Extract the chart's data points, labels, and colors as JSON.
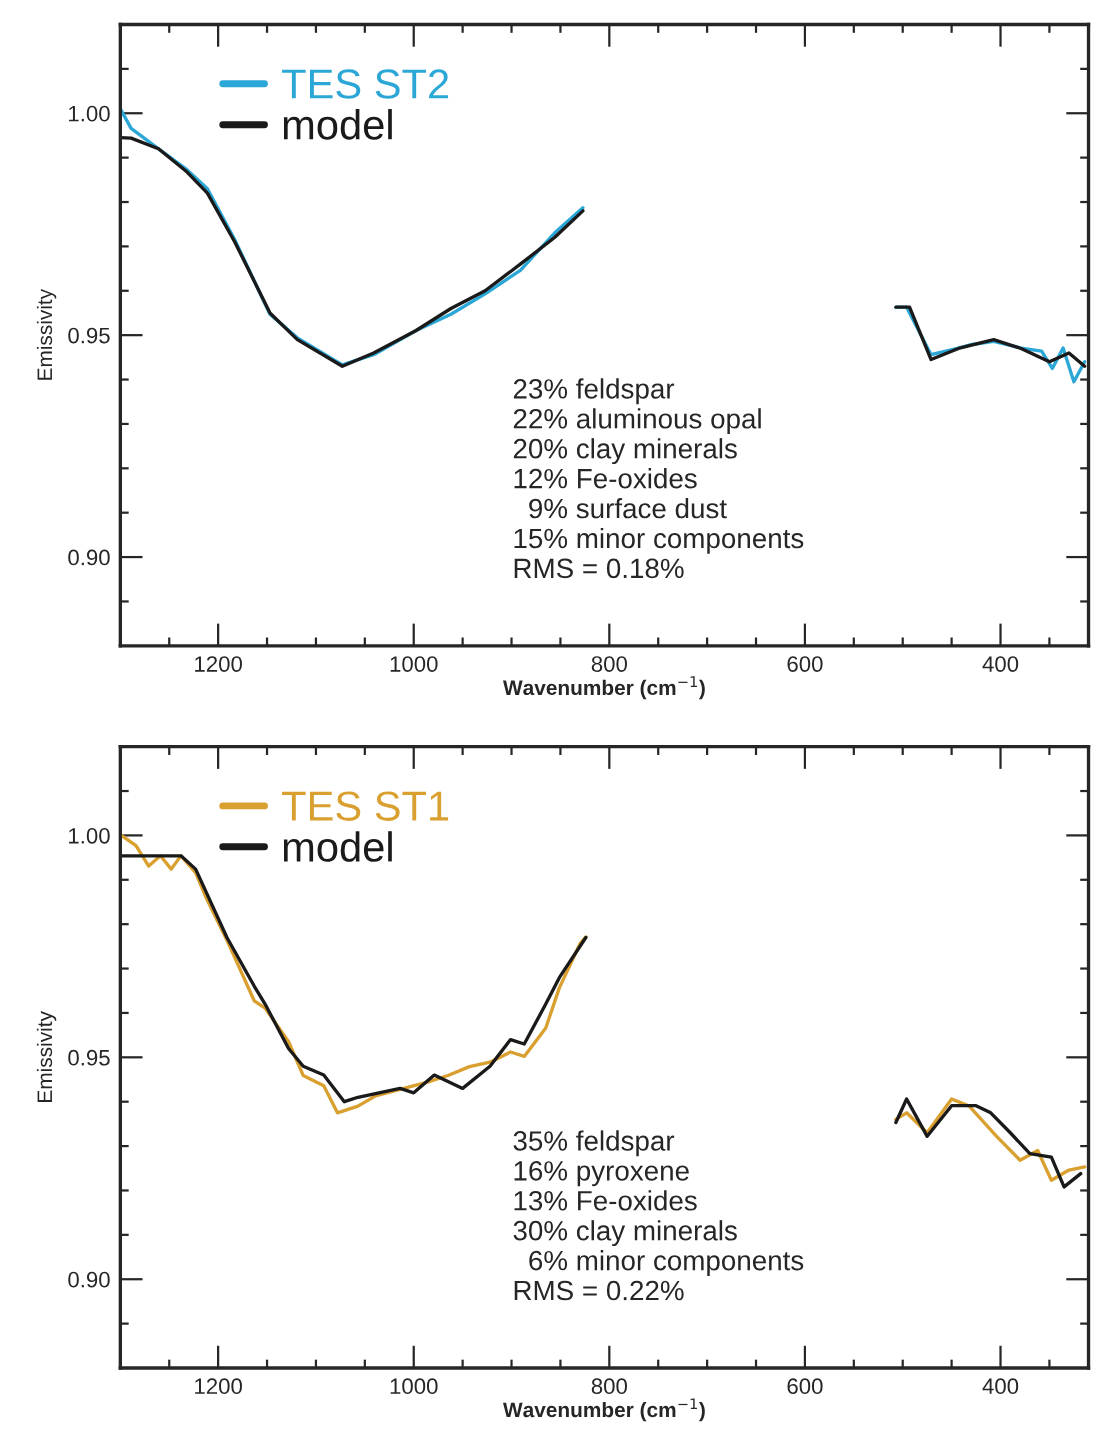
{
  "chart_data": [
    {
      "type": "line",
      "xlabel": "Wavenumber (cm$^{−1}$)",
      "ylabel": "Emissivity",
      "xlim": [
        1300,
        310
      ],
      "ylim": [
        0.88,
        1.02
      ],
      "xticks": [
        1200,
        1000,
        800,
        600,
        400,
        {
          "value": 1250,
          "label": null
        },
        {
          "value": 1150,
          "label": null
        },
        {
          "value": 1100,
          "label": null
        },
        {
          "value": 1050,
          "label": null
        },
        {
          "value": 950,
          "label": null
        },
        {
          "value": 900,
          "label": null
        },
        {
          "value": 850,
          "label": null
        },
        {
          "value": 750,
          "label": null
        },
        {
          "value": 700,
          "label": null
        },
        {
          "value": 650,
          "label": null
        },
        {
          "value": 550,
          "label": null
        },
        {
          "value": 500,
          "label": null
        },
        {
          "value": 450,
          "label": null
        },
        {
          "value": 350,
          "label": null
        }
      ],
      "yticks": [
        {
          "value": 1.0,
          "label": "1.00"
        },
        {
          "value": 0.95,
          "label": "0.95"
        },
        {
          "value": 0.9,
          "label": "0.90"
        },
        {
          "value": 1.01,
          "label": null
        },
        {
          "value": 0.99,
          "label": null
        },
        {
          "value": 0.98,
          "label": null
        },
        {
          "value": 0.97,
          "label": null
        },
        {
          "value": 0.96,
          "label": null
        },
        {
          "value": 0.94,
          "label": null
        },
        {
          "value": 0.93,
          "label": null
        },
        {
          "value": 0.92,
          "label": null
        },
        {
          "value": 0.91,
          "label": null
        },
        {
          "value": 0.89,
          "label": null
        }
      ],
      "legend": "top left",
      "grid": false,
      "marker": "none",
      "line_style": "solid",
      "series": [
        {
          "name": "TES ST2",
          "color": "#2aa7d6",
          "x": [
            1300,
            1289,
            1261,
            1233,
            1211,
            1183,
            1147,
            1119,
            1073,
            1041,
            998,
            962,
            927,
            891,
            856,
            827,
            670,
            507,
            496,
            471,
            443,
            429,
            407,
            379,
            358,
            347,
            336,
            325,
            314
          ],
          "values": [
            1.001,
            0.9966,
            0.992,
            0.9875,
            0.983,
            0.9715,
            0.9547,
            0.9494,
            0.9433,
            0.9456,
            0.951,
            0.9547,
            0.9593,
            0.9646,
            0.973,
            0.9787,
            null,
            0.9563,
            0.9563,
            0.9456,
            0.9471,
            0.9479,
            0.9486,
            0.9471,
            0.9464,
            0.9425,
            0.9471,
            0.9395,
            0.944
          ]
        },
        {
          "name": "model",
          "color": "#1a1a1a",
          "x": [
            1300,
            1289,
            1261,
            1233,
            1211,
            1183,
            1147,
            1119,
            1073,
            1041,
            998,
            962,
            927,
            891,
            856,
            827,
            670,
            507,
            493,
            471,
            443,
            407,
            379,
            350,
            330,
            314
          ],
          "values": [
            0.9945,
            0.9944,
            0.992,
            0.987,
            0.982,
            0.971,
            0.955,
            0.949,
            0.943,
            0.946,
            0.951,
            0.956,
            0.96,
            0.966,
            0.972,
            0.978,
            null,
            0.9563,
            0.9563,
            0.9445,
            0.947,
            0.949,
            0.947,
            0.944,
            0.946,
            0.943
          ]
        }
      ],
      "annotations": [
        "23% feldspar",
        "22% aluminous opal",
        "20% clay minerals",
        "12% Fe-oxides",
        "  9% surface dust",
        "15% minor components",
        "RMS = 0.18%"
      ]
    },
    {
      "type": "line",
      "xlabel": "Wavenumber (cm$^{−1}$)",
      "ylabel": "Emissivity",
      "xlim": [
        1300,
        310
      ],
      "ylim": [
        0.88,
        1.02
      ],
      "xticks": [
        1200,
        1000,
        800,
        600,
        400,
        {
          "value": 1250,
          "label": null
        },
        {
          "value": 1150,
          "label": null
        },
        {
          "value": 1100,
          "label": null
        },
        {
          "value": 1050,
          "label": null
        },
        {
          "value": 950,
          "label": null
        },
        {
          "value": 900,
          "label": null
        },
        {
          "value": 850,
          "label": null
        },
        {
          "value": 750,
          "label": null
        },
        {
          "value": 700,
          "label": null
        },
        {
          "value": 650,
          "label": null
        },
        {
          "value": 550,
          "label": null
        },
        {
          "value": 500,
          "label": null
        },
        {
          "value": 450,
          "label": null
        },
        {
          "value": 350,
          "label": null
        }
      ],
      "yticks": [
        {
          "value": 1.0,
          "label": "1.00"
        },
        {
          "value": 0.95,
          "label": "0.95"
        },
        {
          "value": 0.9,
          "label": "0.90"
        },
        {
          "value": 1.01,
          "label": null
        },
        {
          "value": 0.99,
          "label": null
        },
        {
          "value": 0.98,
          "label": null
        },
        {
          "value": 0.97,
          "label": null
        },
        {
          "value": 0.96,
          "label": null
        },
        {
          "value": 0.94,
          "label": null
        },
        {
          "value": 0.93,
          "label": null
        },
        {
          "value": 0.92,
          "label": null
        },
        {
          "value": 0.91,
          "label": null
        },
        {
          "value": 0.89,
          "label": null
        }
      ],
      "legend": "top left",
      "grid": false,
      "marker": "none",
      "line_style": "solid",
      "series": [
        {
          "name": "TES ST1",
          "color": "#d9a030",
          "x": [
            1299,
            1284,
            1271,
            1259,
            1248,
            1238,
            1223,
            1213,
            1191,
            1163,
            1152,
            1128,
            1113,
            1092,
            1078,
            1057,
            1039,
            1014,
            986,
            965,
            943,
            922,
            901,
            887,
            865,
            851,
            830,
            824,
            670,
            507,
            496,
            475,
            450,
            432,
            404,
            380,
            362,
            348,
            330,
            314
          ],
          "values": [
            1.0,
            0.9977,
            0.9931,
            0.9954,
            0.9924,
            0.9954,
            0.9916,
            0.9863,
            0.9764,
            0.9627,
            0.9611,
            0.9535,
            0.9459,
            0.9436,
            0.9375,
            0.939,
            0.9413,
            0.9428,
            0.9444,
            0.9459,
            0.9479,
            0.9489,
            0.9512,
            0.9502,
            0.9566,
            0.9657,
            0.9756,
            0.9771,
            null,
            0.936,
            0.9375,
            0.933,
            0.9406,
            0.939,
            0.9322,
            0.9268,
            0.929,
            0.9223,
            0.9246,
            0.9253
          ]
        },
        {
          "name": "model",
          "color": "#1a1a1a",
          "x": [
            1299,
            1271,
            1238,
            1223,
            1191,
            1163,
            1152,
            1128,
            1113,
            1092,
            1071,
            1057,
            1014,
            1000,
            979,
            950,
            922,
            901,
            887,
            865,
            851,
            824,
            670,
            507,
            496,
            475,
            450,
            425,
            410,
            390,
            370,
            348,
            335,
            318
          ],
          "values": [
            0.9954,
            0.9954,
            0.9954,
            0.9924,
            0.977,
            0.966,
            0.962,
            0.952,
            0.948,
            0.946,
            0.94,
            0.941,
            0.943,
            0.942,
            0.946,
            0.943,
            0.948,
            0.954,
            0.953,
            0.962,
            0.968,
            0.977,
            null,
            0.9353,
            0.9406,
            0.9322,
            0.9391,
            0.9391,
            0.9375,
            0.933,
            0.9283,
            0.9275,
            0.9208,
            0.9238
          ]
        }
      ],
      "annotations": [
        "35% feldspar",
        "16% pyroxene",
        "13% Fe-oxides",
        "30% clay minerals",
        "  6% minor components",
        "RMS = 0.22%"
      ]
    }
  ]
}
